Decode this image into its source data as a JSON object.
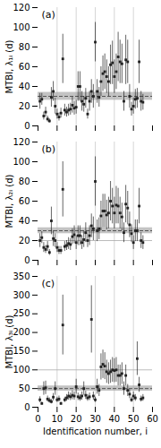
{
  "chart_data": [
    {
      "type": "scatter",
      "annotation": "(a)",
      "ylabel": "MTBI, λ₁ᵢ (d)",
      "x": [
        1,
        2,
        3,
        4,
        5,
        6,
        7,
        8,
        9,
        10,
        11,
        12,
        13,
        14,
        15,
        16,
        17,
        18,
        19,
        20,
        21,
        22,
        23,
        24,
        25,
        26,
        27,
        28,
        29,
        30,
        31,
        32,
        33,
        34,
        35,
        36,
        37,
        38,
        39,
        40,
        41,
        42,
        43,
        44,
        45,
        46,
        47,
        48,
        49,
        50,
        51,
        52,
        53,
        54,
        55
      ],
      "values": [
        25,
        27,
        10,
        14,
        7,
        5,
        29,
        35,
        20,
        12,
        9,
        13,
        68,
        16,
        14,
        16,
        17,
        21,
        18,
        19,
        40,
        40,
        25,
        22,
        28,
        12,
        25,
        35,
        30,
        85,
        35,
        29,
        45,
        53,
        55,
        50,
        45,
        62,
        64,
        50,
        55,
        70,
        65,
        63,
        25,
        67,
        65,
        30,
        17,
        20,
        27,
        28,
        65,
        25,
        24
      ],
      "yerr_lo": [
        8,
        6,
        4,
        5,
        3,
        2,
        10,
        10,
        8,
        5,
        4,
        5,
        25,
        6,
        5,
        6,
        6,
        8,
        7,
        7,
        15,
        15,
        10,
        8,
        10,
        5,
        10,
        12,
        12,
        20,
        12,
        10,
        15,
        18,
        18,
        17,
        15,
        20,
        22,
        17,
        18,
        25,
        22,
        20,
        10,
        25,
        22,
        12,
        7,
        8,
        10,
        10,
        22,
        10,
        8
      ],
      "yerr_hi": [
        8,
        6,
        4,
        5,
        3,
        2,
        10,
        10,
        8,
        5,
        4,
        5,
        25,
        6,
        5,
        6,
        6,
        8,
        7,
        7,
        15,
        15,
        10,
        8,
        10,
        5,
        10,
        12,
        12,
        20,
        12,
        10,
        15,
        18,
        18,
        17,
        15,
        20,
        22,
        17,
        18,
        25,
        22,
        20,
        10,
        25,
        22,
        12,
        7,
        8,
        10,
        10,
        22,
        10,
        8
      ],
      "color": "#222222",
      "marker": "square",
      "xlim": [
        0,
        60
      ],
      "xticks": [
        0,
        10,
        20,
        30,
        40,
        50,
        60
      ],
      "ylim": [
        0,
        120
      ],
      "yticks": [
        0,
        20,
        40,
        60,
        80,
        100,
        120
      ],
      "grid": false,
      "tick_labels": "y",
      "vlines": {
        "values": [
          10,
          20,
          30,
          40,
          50
        ],
        "color": "#cccccc"
      },
      "mean": {
        "value": 30,
        "error": 4,
        "color": "#555555",
        "line_style": "dashed",
        "band": {
          "color": "#aaaaaa"
        }
      }
    },
    {
      "type": "scatter",
      "annotation": "(b)",
      "ylabel": "MTBI, λ₂ᵢ (d)",
      "x": [
        1,
        2,
        3,
        4,
        5,
        6,
        7,
        8,
        9,
        10,
        11,
        12,
        13,
        14,
        15,
        16,
        17,
        18,
        19,
        20,
        21,
        22,
        23,
        24,
        25,
        26,
        27,
        28,
        29,
        30,
        31,
        32,
        33,
        34,
        35,
        36,
        37,
        38,
        39,
        40,
        41,
        42,
        43,
        44,
        45,
        46,
        47,
        48,
        49,
        50,
        51,
        52,
        53,
        54,
        55
      ],
      "values": [
        20,
        23,
        13,
        11,
        14,
        8,
        40,
        22,
        20,
        13,
        10,
        10,
        72,
        14,
        15,
        17,
        16,
        24,
        26,
        18,
        25,
        25,
        18,
        21,
        28,
        20,
        25,
        35,
        32,
        80,
        30,
        32,
        45,
        50,
        50,
        46,
        48,
        60,
        55,
        48,
        56,
        55,
        48,
        44,
        28,
        57,
        53,
        36,
        27,
        18,
        30,
        30,
        55,
        20,
        18
      ],
      "yerr_lo": [
        7,
        6,
        5,
        4,
        5,
        3,
        14,
        8,
        7,
        5,
        4,
        4,
        28,
        5,
        5,
        6,
        6,
        8,
        9,
        7,
        10,
        10,
        7,
        8,
        10,
        7,
        10,
        12,
        12,
        25,
        11,
        11,
        15,
        17,
        17,
        15,
        16,
        20,
        18,
        16,
        19,
        18,
        16,
        14,
        10,
        19,
        17,
        13,
        9,
        7,
        11,
        11,
        18,
        8,
        7
      ],
      "yerr_hi": [
        7,
        6,
        5,
        4,
        5,
        3,
        14,
        8,
        7,
        5,
        4,
        4,
        28,
        5,
        5,
        6,
        6,
        8,
        9,
        7,
        10,
        10,
        7,
        8,
        10,
        7,
        10,
        12,
        12,
        25,
        11,
        11,
        15,
        17,
        17,
        15,
        16,
        20,
        18,
        16,
        19,
        18,
        16,
        14,
        10,
        19,
        17,
        13,
        9,
        7,
        11,
        11,
        18,
        8,
        7
      ],
      "color": "#222222",
      "marker": "square",
      "xlim": [
        0,
        60
      ],
      "xticks": [
        0,
        10,
        20,
        30,
        40,
        50,
        60
      ],
      "ylim": [
        0,
        120
      ],
      "yticks": [
        0,
        20,
        40,
        60,
        80,
        100,
        120
      ],
      "grid": false,
      "tick_labels": "y",
      "vlines": {
        "values": [
          10,
          20,
          30,
          40,
          50
        ],
        "color": "#cccccc"
      },
      "mean": {
        "value": 30,
        "error": 3,
        "color": "#555555",
        "line_style": "dashed",
        "band": {
          "color": "#aaaaaa"
        }
      },
      "hline": {
        "value": 20,
        "color": "#aaaaaa",
        "line_style": "solid"
      }
    },
    {
      "type": "scatter",
      "annotation": "(c)",
      "ylabel": "MTBI, λ₃ᵢ (d)",
      "xlabel": "Identification number, i",
      "x": [
        1,
        2,
        3,
        4,
        5,
        6,
        7,
        8,
        9,
        10,
        11,
        12,
        13,
        14,
        15,
        16,
        17,
        18,
        19,
        20,
        21,
        22,
        23,
        24,
        25,
        26,
        27,
        28,
        29,
        30,
        31,
        32,
        33,
        34,
        35,
        36,
        37,
        38,
        39,
        40,
        41,
        42,
        43,
        44,
        45,
        46,
        47,
        48,
        49,
        50,
        51,
        52,
        53,
        54,
        55
      ],
      "values": [
        20,
        10,
        50,
        52,
        22,
        18,
        15,
        27,
        50,
        20,
        22,
        10,
        220,
        20,
        25,
        30,
        28,
        32,
        30,
        55,
        28,
        25,
        30,
        50,
        32,
        25,
        28,
        235,
        30,
        20,
        55,
        45,
        108,
        115,
        110,
        95,
        90,
        95,
        100,
        98,
        100,
        85,
        85,
        90,
        50,
        85,
        45,
        35,
        20,
        30,
        25,
        130,
        60,
        22,
        25
      ],
      "yerr_lo": [
        8,
        4,
        18,
        18,
        8,
        7,
        6,
        10,
        18,
        7,
        8,
        4,
        80,
        7,
        9,
        11,
        10,
        12,
        11,
        20,
        10,
        9,
        11,
        18,
        11,
        9,
        10,
        90,
        11,
        7,
        20,
        16,
        35,
        38,
        36,
        31,
        29,
        31,
        33,
        32,
        33,
        28,
        28,
        29,
        18,
        28,
        16,
        12,
        7,
        11,
        9,
        45,
        20,
        8,
        9
      ],
      "yerr_hi": [
        8,
        4,
        18,
        18,
        8,
        7,
        6,
        10,
        18,
        7,
        8,
        4,
        80,
        7,
        9,
        11,
        10,
        12,
        11,
        20,
        10,
        9,
        11,
        18,
        11,
        9,
        10,
        90,
        11,
        7,
        20,
        16,
        35,
        38,
        36,
        31,
        29,
        31,
        33,
        32,
        33,
        28,
        28,
        29,
        18,
        28,
        16,
        12,
        7,
        11,
        9,
        45,
        20,
        8,
        9
      ],
      "color": "#222222",
      "marker": "square",
      "xlim": [
        0,
        60
      ],
      "xticks": [
        0,
        10,
        20,
        30,
        40,
        50,
        60
      ],
      "ylim": [
        0,
        350
      ],
      "yticks": [
        0,
        50,
        100,
        150,
        200,
        250,
        300,
        350
      ],
      "grid": false,
      "vlines": {
        "values": [
          10,
          20,
          30,
          40,
          50
        ],
        "color": "#cccccc"
      },
      "mean": {
        "value": 50,
        "error": 7,
        "color": "#555555",
        "line_style": "dashed",
        "band": {
          "color": "#aaaaaa"
        }
      },
      "hline": {
        "value": 100,
        "color": "#aaaaaa",
        "line_style": "solid"
      }
    }
  ]
}
